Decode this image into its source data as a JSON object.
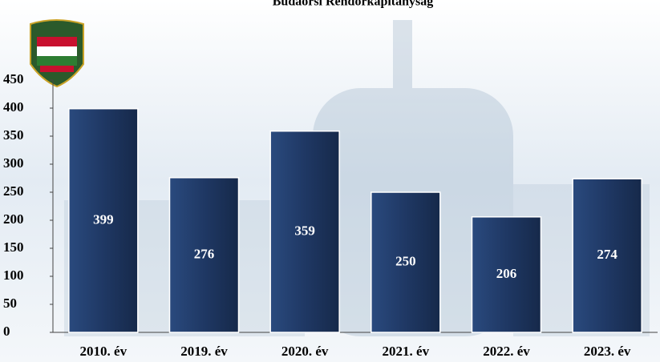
{
  "chart_data": {
    "type": "bar",
    "title": "Budaörsi Rendőrkapitányság",
    "categories": [
      "2010. év",
      "2019. év",
      "2020. év",
      "2021. év",
      "2022. év",
      "2023. év"
    ],
    "values": [
      399,
      276,
      359,
      250,
      206,
      274
    ],
    "color": "#1f3864",
    "ylim": [
      0,
      450
    ],
    "yticks": [
      0,
      50,
      100,
      150,
      200,
      250,
      300,
      350,
      400,
      450
    ],
    "grid": false
  }
}
